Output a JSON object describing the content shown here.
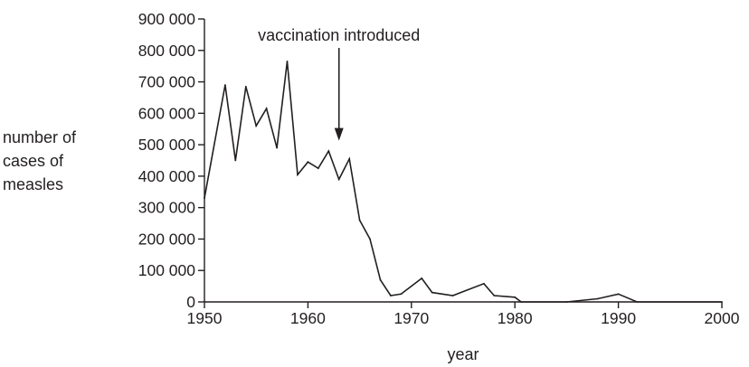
{
  "chart_data": {
    "type": "line",
    "title": "",
    "xlabel": "year",
    "ylabel_lines": [
      "number of",
      "cases of",
      "measles"
    ],
    "xlim": [
      1950,
      2000
    ],
    "ylim": [
      0,
      900000
    ],
    "x_ticks": [
      1950,
      1960,
      1970,
      1980,
      1990,
      2000
    ],
    "y_ticks": [
      0,
      100000,
      200000,
      300000,
      400000,
      500000,
      600000,
      700000,
      800000,
      900000
    ],
    "x_tick_labels": [
      "1950",
      "1960",
      "1970",
      "1980",
      "1990",
      "2000"
    ],
    "y_tick_labels": [
      "0",
      "100 000",
      "200 000",
      "300 000",
      "400 000",
      "500 000",
      "600 000",
      "700 000",
      "800 000",
      "900 000"
    ],
    "grid": false,
    "series": [
      {
        "x": [
          1950,
          1952,
          1953,
          1954,
          1955,
          1956,
          1957,
          1958,
          1959,
          1960,
          1961,
          1962,
          1963,
          1964,
          1965,
          1966,
          1967,
          1968,
          1969,
          1971,
          1972,
          1974,
          1977,
          1978,
          1980,
          1980.6,
          1985,
          1988,
          1990,
          1991.8,
          2000
        ],
        "y": [
          330000,
          690000,
          450000,
          685000,
          560000,
          615000,
          490000,
          765000,
          405000,
          445000,
          425000,
          480000,
          390000,
          455000,
          260000,
          200000,
          70000,
          20000,
          25000,
          75000,
          30000,
          20000,
          58000,
          20000,
          15000,
          0,
          0,
          10000,
          25000,
          0,
          0
        ]
      }
    ],
    "annotations": [
      {
        "text": "vaccination introduced",
        "x": 1963,
        "y": 510000
      }
    ],
    "colors": {
      "line": "#231f20",
      "axis": "#231f20",
      "text": "#231f20"
    }
  }
}
